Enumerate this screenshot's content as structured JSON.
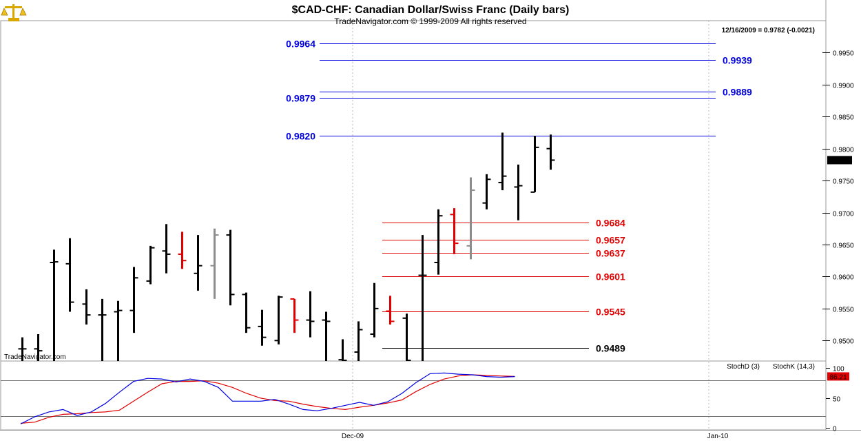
{
  "header": {
    "title": "$CAD-CHF:  Canadian Dollar/Swiss Franc  (Daily bars)",
    "subtitle": "TradeNavigator.com © 1999-2009 All rights reserved",
    "last_value_info": "12/16/2009 = 0.9782 (-0.0021)",
    "watermark": "TradeNavigator.com",
    "logo_icon": "scales-logo-icon"
  },
  "colors": {
    "blue": "#0000e0",
    "red": "#e00000",
    "black": "#000000",
    "gray": "#8c8c8c",
    "stoch_d": "#e00000",
    "stoch_k": "#0000cc"
  },
  "chart_data": [
    {
      "type": "ohlc",
      "title": "$CAD-CHF:  Canadian Dollar/Swiss Franc  (Daily bars)",
      "ylim": [
        0.9468,
        1.0
      ],
      "y_ticks": [
        "0.9950",
        "0.9900",
        "0.9850",
        "0.9800",
        "0.9750",
        "0.9700",
        "0.9650",
        "0.9600",
        "0.9550",
        "0.9500"
      ],
      "x_ticks": [
        "Dec-09",
        "Jan-10"
      ],
      "last_price_label": "0.9782",
      "bars": [
        {
          "x": 1,
          "o": 0.9487,
          "h": 0.9505,
          "l": 0.9466,
          "c": 0.9487,
          "color": "black"
        },
        {
          "x": 2,
          "o": 0.9487,
          "h": 0.951,
          "l": 0.9466,
          "c": 0.9484,
          "color": "black"
        },
        {
          "x": 3,
          "o": 0.9622,
          "h": 0.9642,
          "l": 0.9466,
          "c": 0.9623,
          "color": "black"
        },
        {
          "x": 4,
          "o": 0.962,
          "h": 0.966,
          "l": 0.9545,
          "c": 0.956,
          "color": "black"
        },
        {
          "x": 5,
          "o": 0.9557,
          "h": 0.958,
          "l": 0.9525,
          "c": 0.954,
          "color": "black"
        },
        {
          "x": 6,
          "o": 0.954,
          "h": 0.9565,
          "l": 0.9468,
          "c": 0.954,
          "color": "black"
        },
        {
          "x": 7,
          "o": 0.9545,
          "h": 0.9562,
          "l": 0.9468,
          "c": 0.9547,
          "color": "black"
        },
        {
          "x": 8,
          "o": 0.9547,
          "h": 0.9615,
          "l": 0.9512,
          "c": 0.9598,
          "color": "black"
        },
        {
          "x": 9,
          "o": 0.9593,
          "h": 0.9648,
          "l": 0.9588,
          "c": 0.9645,
          "color": "black"
        },
        {
          "x": 10,
          "o": 0.964,
          "h": 0.9682,
          "l": 0.9605,
          "c": 0.9635,
          "color": "black"
        },
        {
          "x": 11,
          "o": 0.9635,
          "h": 0.967,
          "l": 0.9612,
          "c": 0.9625,
          "color": "red"
        },
        {
          "x": 12,
          "o": 0.9605,
          "h": 0.9665,
          "l": 0.9578,
          "c": 0.9617,
          "color": "black"
        },
        {
          "x": 13,
          "o": 0.9617,
          "h": 0.9675,
          "l": 0.9565,
          "c": 0.9665,
          "color": "gray"
        },
        {
          "x": 14,
          "o": 0.9665,
          "h": 0.9673,
          "l": 0.9555,
          "c": 0.9572,
          "color": "black"
        },
        {
          "x": 15,
          "o": 0.9572,
          "h": 0.9575,
          "l": 0.9512,
          "c": 0.952,
          "color": "black"
        },
        {
          "x": 16,
          "o": 0.9522,
          "h": 0.9548,
          "l": 0.9492,
          "c": 0.9505,
          "color": "black"
        },
        {
          "x": 17,
          "o": 0.95,
          "h": 0.957,
          "l": 0.9494,
          "c": 0.9568,
          "color": "black"
        },
        {
          "x": 18,
          "o": 0.9565,
          "h": 0.9565,
          "l": 0.9512,
          "c": 0.9532,
          "color": "red"
        },
        {
          "x": 19,
          "o": 0.9532,
          "h": 0.9577,
          "l": 0.9505,
          "c": 0.953,
          "color": "black"
        },
        {
          "x": 20,
          "o": 0.9532,
          "h": 0.9545,
          "l": 0.9468,
          "c": 0.953,
          "color": "black"
        },
        {
          "x": 21,
          "o": 0.947,
          "h": 0.9502,
          "l": 0.9468,
          "c": 0.9468,
          "color": "black"
        },
        {
          "x": 22,
          "o": 0.9482,
          "h": 0.953,
          "l": 0.9468,
          "c": 0.9517,
          "color": "black"
        },
        {
          "x": 23,
          "o": 0.951,
          "h": 0.959,
          "l": 0.9505,
          "c": 0.955,
          "color": "black"
        },
        {
          "x": 24,
          "o": 0.9546,
          "h": 0.957,
          "l": 0.9525,
          "c": 0.953,
          "color": "red"
        },
        {
          "x": 25,
          "o": 0.9535,
          "h": 0.9542,
          "l": 0.9468,
          "c": 0.9468,
          "color": "black"
        },
        {
          "x": 26,
          "o": 0.9602,
          "h": 0.9665,
          "l": 0.9468,
          "c": 0.9602,
          "color": "black"
        },
        {
          "x": 27,
          "o": 0.9622,
          "h": 0.9705,
          "l": 0.9603,
          "c": 0.9695,
          "color": "black"
        },
        {
          "x": 28,
          "o": 0.9697,
          "h": 0.9707,
          "l": 0.9635,
          "c": 0.9652,
          "color": "red"
        },
        {
          "x": 29,
          "o": 0.9648,
          "h": 0.9755,
          "l": 0.9627,
          "c": 0.9735,
          "color": "gray"
        },
        {
          "x": 30,
          "o": 0.9715,
          "h": 0.976,
          "l": 0.9705,
          "c": 0.9752,
          "color": "black"
        },
        {
          "x": 31,
          "o": 0.9747,
          "h": 0.9825,
          "l": 0.9735,
          "c": 0.9757,
          "color": "black"
        },
        {
          "x": 32,
          "o": 0.974,
          "h": 0.9775,
          "l": 0.9688,
          "c": 0.9742,
          "color": "black"
        },
        {
          "x": 33,
          "o": 0.9732,
          "h": 0.982,
          "l": 0.9732,
          "c": 0.9802,
          "color": "black"
        },
        {
          "x": 34,
          "o": 0.98,
          "h": 0.9822,
          "l": 0.9767,
          "c": 0.9782,
          "color": "black"
        }
      ],
      "levels": [
        {
          "value": 0.9964,
          "label": "0.9964",
          "color": "blue",
          "label_side": "left"
        },
        {
          "value": 0.9939,
          "label": "0.9939",
          "color": "blue",
          "label_side": "right"
        },
        {
          "value": 0.9889,
          "label": "0.9889",
          "color": "blue",
          "label_side": "right"
        },
        {
          "value": 0.9879,
          "label": "0.9879",
          "color": "blue",
          "label_side": "left"
        },
        {
          "value": 0.982,
          "label": "0.9820",
          "color": "blue",
          "label_side": "left"
        },
        {
          "value": 0.9684,
          "label": "0.9684",
          "color": "red",
          "label_side": "right"
        },
        {
          "value": 0.9657,
          "label": "0.9657",
          "color": "red",
          "label_side": "right"
        },
        {
          "value": 0.9637,
          "label": "0.9637",
          "color": "red",
          "label_side": "right"
        },
        {
          "value": 0.9601,
          "label": "0.9601",
          "color": "red",
          "label_side": "right"
        },
        {
          "value": 0.9545,
          "label": "0.9545",
          "color": "red",
          "label_side": "right"
        },
        {
          "value": 0.9489,
          "label": "0.9489",
          "color": "black",
          "label_side": "right"
        }
      ]
    },
    {
      "type": "line",
      "title": "",
      "ylim": [
        -3,
        112
      ],
      "y_ticks": [
        "100",
        "50",
        "0"
      ],
      "reference_lines": [
        80,
        20
      ],
      "last_value_label": "86.21",
      "series": [
        {
          "name": "StochD (3)",
          "color": "red",
          "values": [
            8,
            10,
            18,
            23,
            24,
            26,
            27,
            30,
            45,
            60,
            74,
            78,
            78,
            79,
            75,
            68,
            58,
            50,
            46,
            45,
            40,
            36,
            33,
            31,
            35,
            38,
            42,
            47,
            61,
            73,
            82,
            87,
            89,
            88,
            87,
            86.2
          ]
        },
        {
          "name": "StochK (14,3)",
          "color": "blue",
          "values": [
            7,
            19,
            27,
            31,
            21,
            27,
            41,
            60,
            78,
            83,
            82,
            77,
            82,
            78,
            68,
            45,
            45,
            45,
            48,
            40,
            31,
            29,
            33,
            38,
            43,
            38,
            44,
            58,
            76,
            91,
            92,
            90,
            89,
            86,
            85,
            86
          ]
        }
      ]
    }
  ]
}
